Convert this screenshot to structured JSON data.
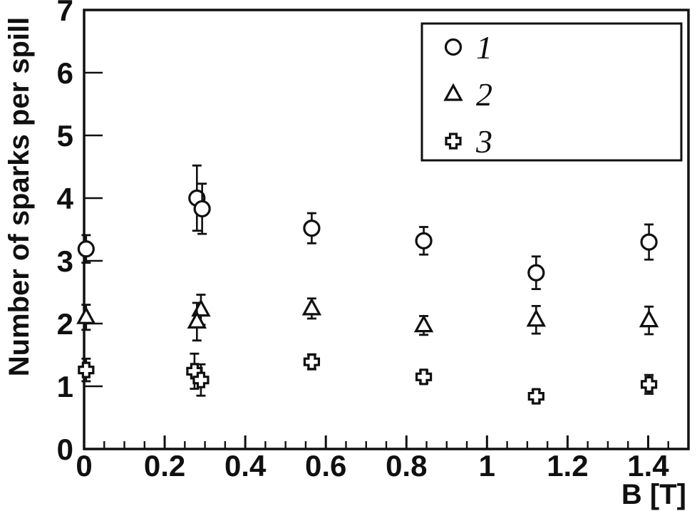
{
  "figure": {
    "background_color": "#ffffff",
    "ink_color": "#101010"
  },
  "chart_data": {
    "type": "scatter",
    "title": "",
    "xlabel": "B [T]",
    "ylabel": "Number of sparks per spill",
    "xlim": [
      0,
      1.5
    ],
    "ylim": [
      0,
      7
    ],
    "grid": false,
    "legend_position": "top-right",
    "x_major_ticks": [
      0,
      0.2,
      0.4,
      0.6,
      0.8,
      1,
      1.2,
      1.4
    ],
    "x_major_labels": [
      "0",
      "0.2",
      "0.4",
      "0.6",
      "0.8",
      "1",
      "1.2",
      "1.4"
    ],
    "x_minor_step": 0.05,
    "y_major_ticks": [
      0,
      1,
      2,
      3,
      4,
      5,
      6,
      7
    ],
    "y_major_labels": [
      "0",
      "1",
      "2",
      "3",
      "4",
      "5",
      "6",
      "7"
    ],
    "series": [
      {
        "name": "1",
        "marker": "circle",
        "points_format": [
          "B_tesla",
          "sparks_per_spill",
          "error"
        ],
        "points": [
          [
            0.005,
            3.19,
            0.22
          ],
          [
            0.28,
            4.0,
            0.52
          ],
          [
            0.293,
            3.83,
            0.4
          ],
          [
            0.565,
            3.52,
            0.24
          ],
          [
            0.843,
            3.32,
            0.22
          ],
          [
            1.122,
            2.81,
            0.26
          ],
          [
            1.402,
            3.3,
            0.28
          ]
        ]
      },
      {
        "name": "2",
        "marker": "triangle",
        "points_format": [
          "B_tesla",
          "sparks_per_spill",
          "error"
        ],
        "points": [
          [
            0.005,
            2.1,
            0.2
          ],
          [
            0.29,
            2.22,
            0.24
          ],
          [
            0.28,
            2.03,
            0.3
          ],
          [
            0.565,
            2.24,
            0.16
          ],
          [
            0.843,
            1.97,
            0.15
          ],
          [
            1.122,
            2.06,
            0.22
          ],
          [
            1.402,
            2.05,
            0.22
          ]
        ]
      },
      {
        "name": "3",
        "marker": "open-cross",
        "points_format": [
          "B_tesla",
          "sparks_per_spill",
          "error"
        ],
        "points": [
          [
            0.005,
            1.26,
            0.18
          ],
          [
            0.274,
            1.24,
            0.28
          ],
          [
            0.29,
            1.1,
            0.25
          ],
          [
            0.565,
            1.39,
            0.12
          ],
          [
            0.843,
            1.15,
            0.1
          ],
          [
            1.122,
            0.84,
            0.1
          ],
          [
            1.402,
            1.03,
            0.15
          ]
        ]
      }
    ]
  }
}
